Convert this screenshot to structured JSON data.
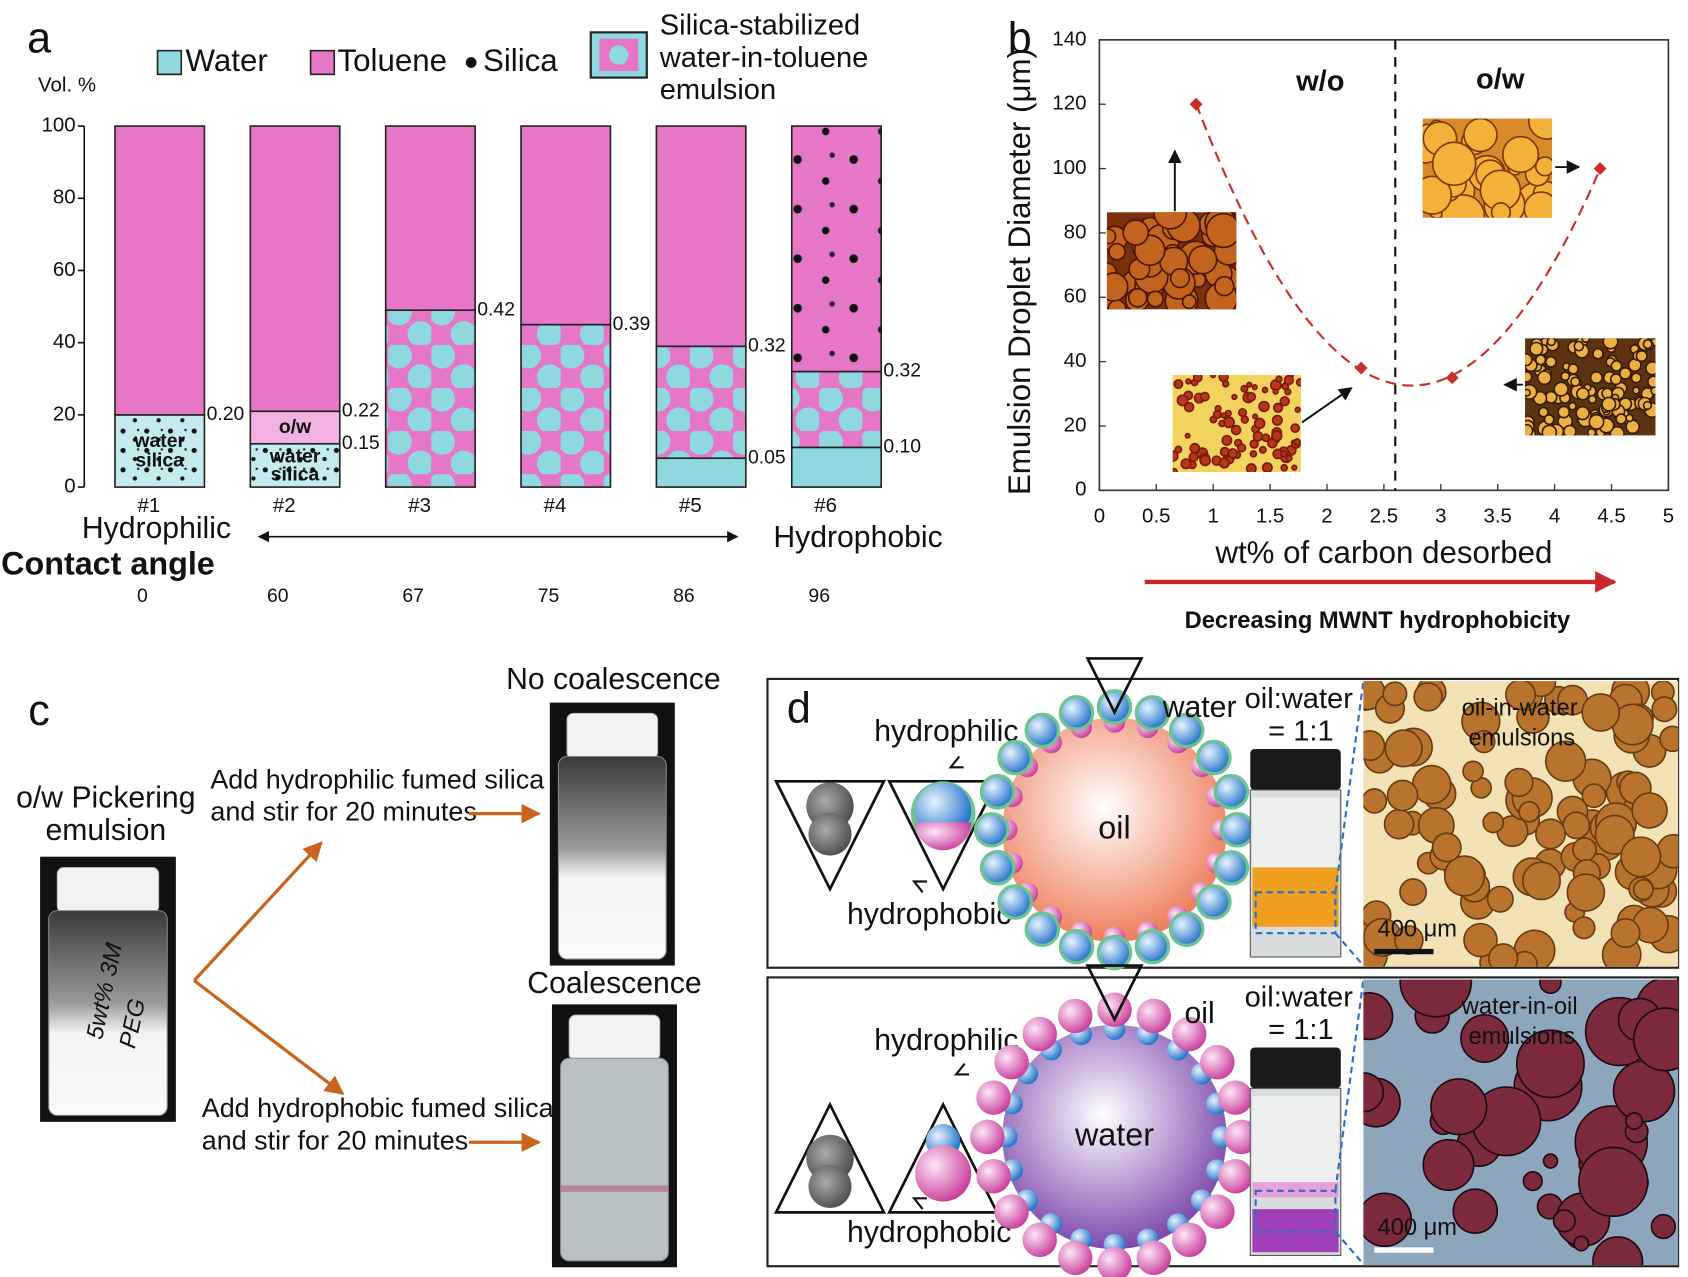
{
  "chart_data": [
    {
      "type": "bar",
      "stacked": true,
      "panel": "a",
      "ylabel": "Vol. %",
      "categories": [
        "#1",
        "#2",
        "#3",
        "#4",
        "#5",
        "#6"
      ],
      "ylim": [
        0,
        100
      ],
      "yticks": [
        0,
        20,
        40,
        60,
        80,
        100
      ],
      "series": [
        {
          "name": "water silica",
          "color": "#c4ecef",
          "pattern": "silica",
          "label_inside": true,
          "values": [
            20,
            12,
            null,
            null,
            null,
            null
          ]
        },
        {
          "name": "Water",
          "color": "#8fd8de",
          "pattern": "plain",
          "values": [
            null,
            null,
            null,
            null,
            8,
            11
          ]
        },
        {
          "name": "o/w",
          "color": "#f2b2e0",
          "pattern": "plain",
          "label_inside": true,
          "values": [
            null,
            9,
            null,
            null,
            null,
            null
          ]
        },
        {
          "name": "Silica-stabilized water-in-toluene emulsion",
          "color": "#e676c6",
          "pattern": "emulsion",
          "values": [
            null,
            null,
            49,
            45,
            31,
            21
          ]
        },
        {
          "name": "Toluene",
          "color": "#e676c6",
          "pattern": "plain",
          "patterns": [
            "plain",
            "plain",
            "plain",
            "plain",
            "plain",
            "silica"
          ],
          "values": [
            80,
            79,
            51,
            55,
            61,
            68
          ]
        }
      ],
      "marker_legend": "Silica",
      "boundary_labels": [
        [
          "0.20"
        ],
        [
          "0.15",
          "0.22"
        ],
        [
          "0.42"
        ],
        [
          "0.39"
        ],
        [
          "0.05",
          "0.32"
        ],
        [
          "0.10",
          "0.32"
        ]
      ],
      "axis_notes": {
        "left": "Hydrophilic",
        "right": "Hydrophobic"
      },
      "contact_angle": {
        "label": "Contact angle",
        "values": [
          0,
          60,
          67,
          75,
          86,
          96
        ]
      }
    },
    {
      "type": "scatter",
      "panel": "b",
      "xlabel": "wt% of carbon desorbed",
      "ylabel": "Emulsion Droplet Diameter (μm)",
      "x": [
        0.85,
        2.3,
        3.1,
        4.4
      ],
      "values": [
        120,
        38,
        35,
        100
      ],
      "color": "#c8302b",
      "xlim": [
        0,
        5
      ],
      "xticks": [
        0,
        0.5,
        1,
        1.5,
        2,
        2.5,
        3,
        3.5,
        4,
        4.5,
        5
      ],
      "ylim": [
        0,
        140
      ],
      "yticks": [
        0,
        20,
        40,
        60,
        80,
        100,
        120,
        140
      ],
      "trend": "dashed",
      "divider_x": 2.6,
      "regions": [
        "w/o",
        "o/w"
      ],
      "annotation": "Decreasing  MWNT hydrophobicity"
    }
  ],
  "panel_c": {
    "label": "c",
    "sample": [
      "o/w Pickering",
      "emulsion"
    ],
    "vial_label": [
      "5wt% 3M",
      "PEG"
    ],
    "steps": [
      {
        "lines": [
          "Add hydrophilic fumed silica",
          "and stir for 20 minutes"
        ],
        "result": "No coalescence"
      },
      {
        "lines": [
          "Add hydrophobic fumed silica",
          "and stir for 20 minutes"
        ],
        "result": "Coalescence"
      }
    ]
  },
  "panel_d": {
    "label": "d",
    "rows": [
      {
        "top": "hydrophilic",
        "bottom": "hydrophobic",
        "core": "oil",
        "medium": "water",
        "ratio": [
          "oil:water",
          "= 1:1"
        ],
        "micrograph": [
          "oil-in-water",
          "emulsions"
        ],
        "scale": "400 μm"
      },
      {
        "top": "hydrophilic",
        "bottom": "hydrophobic",
        "core": "water",
        "medium": "oil",
        "ratio": [
          "oil:water",
          "= 1:1"
        ],
        "micrograph": [
          "water-in-oil",
          "emulsions"
        ],
        "scale": "400 μm"
      }
    ]
  }
}
